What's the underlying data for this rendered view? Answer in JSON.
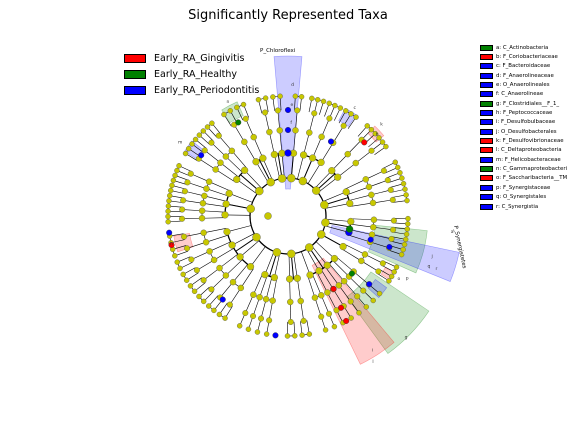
{
  "title": "Significantly Represented Taxa",
  "colors": {
    "Early_RA_Gingivitis": "#ff0000",
    "Early_RA_Healthy": "#008000",
    "Early_RA_Periodontitis": "#0000ff",
    "neutral_node": "#c8c800"
  },
  "group_legend": [
    {
      "label": "Early_RA_Gingivitis",
      "group": "Early_RA_Gingivitis"
    },
    {
      "label": "Early_RA_Healthy",
      "group": "Early_RA_Healthy"
    },
    {
      "label": "Early_RA_Periodontitis",
      "group": "Early_RA_Periodontitis"
    }
  ],
  "clade_legend": [
    {
      "key": "a",
      "text": "a: C_Actinobacteria",
      "group": "Early_RA_Healthy"
    },
    {
      "key": "b",
      "text": "b: F_Coriobacteriaceae",
      "group": "Early_RA_Gingivitis"
    },
    {
      "key": "c",
      "text": "c: F_Bacteroidaceae",
      "group": "Early_RA_Periodontitis"
    },
    {
      "key": "d",
      "text": "d: F_Anaerolineaceae",
      "group": "Early_RA_Periodontitis"
    },
    {
      "key": "e",
      "text": "e: O_Anaerolineales",
      "group": "Early_RA_Periodontitis"
    },
    {
      "key": "f",
      "text": "f: C_Anaerolineae",
      "group": "Early_RA_Periodontitis"
    },
    {
      "key": "g",
      "text": "g: F_Clostridiales__F_1_",
      "group": "Early_RA_Healthy"
    },
    {
      "key": "h",
      "text": "h: F_Peptococcaceae",
      "group": "Early_RA_Periodontitis"
    },
    {
      "key": "i",
      "text": "i: F_Desulfobulbaceae",
      "group": "Early_RA_Periodontitis"
    },
    {
      "key": "j",
      "text": "j: O_Desulfobacterales",
      "group": "Early_RA_Periodontitis"
    },
    {
      "key": "k",
      "text": "k: F_Desulfovibrionaceae",
      "group": "Early_RA_Gingivitis"
    },
    {
      "key": "l",
      "text": "l: C_Deltaproteobacteria",
      "group": "Early_RA_Gingivitis"
    },
    {
      "key": "m",
      "text": "m: F_Helicobacteraceae",
      "group": "Early_RA_Periodontitis"
    },
    {
      "key": "n",
      "text": "n: C_Gammaproteobacteri",
      "group": "Early_RA_Healthy"
    },
    {
      "key": "o",
      "text": "o: F_Saccharibacteria__TM",
      "group": "Early_RA_Gingivitis"
    },
    {
      "key": "p",
      "text": "p: F_Synergistaceae",
      "group": "Early_RA_Periodontitis"
    },
    {
      "key": "q",
      "text": "q: O_Synergistales",
      "group": "Early_RA_Periodontitis"
    },
    {
      "key": "r",
      "text": "r: C_Synergistia",
      "group": "Early_RA_Periodontitis"
    }
  ],
  "phylum_labels": [
    {
      "text": "P_Chloroflexi",
      "group": "Early_RA_Periodontitis"
    },
    {
      "text": "P_Synergistetes",
      "group": "Early_RA_Periodontitis"
    }
  ]
}
